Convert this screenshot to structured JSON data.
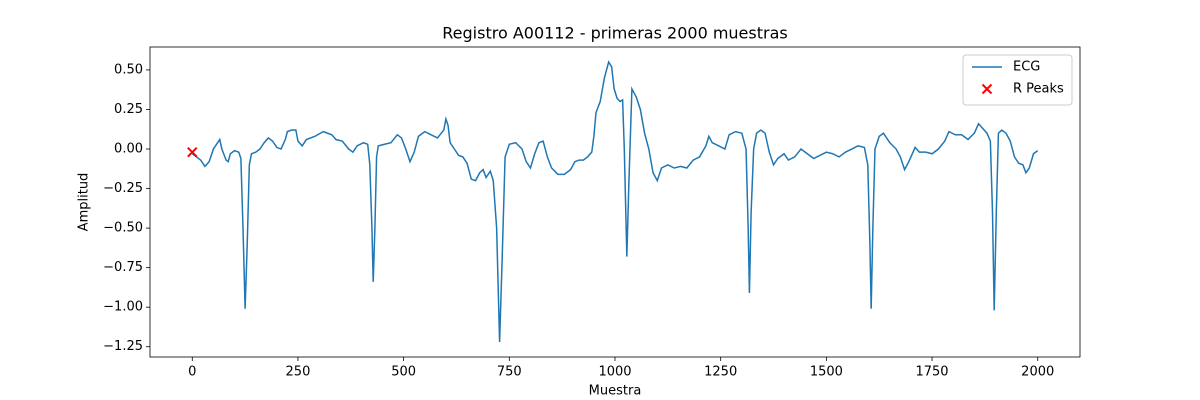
{
  "chart_data": {
    "type": "line",
    "title": "Registro A00112 - primeras 2000 muestras",
    "xlabel": "Muestra",
    "ylabel": "Amplitud",
    "xlim": [
      -100,
      2100
    ],
    "ylim": [
      -1.315,
      0.645
    ],
    "xticks": [
      0,
      250,
      500,
      750,
      1000,
      1250,
      1500,
      1750,
      2000
    ],
    "yticks": [
      {
        "value": -1.25,
        "label": "−1.25"
      },
      {
        "value": -1,
        "label": "−1.00"
      },
      {
        "value": -0.75,
        "label": "−0.75"
      },
      {
        "value": -0.5,
        "label": "−0.50"
      },
      {
        "value": -0.25,
        "label": "−0.25"
      },
      {
        "value": 0,
        "label": "0.00"
      },
      0.25,
      {
        "value": 0.5,
        "label": "0.50"
      }
    ],
    "legend": "upper right",
    "series": [
      {
        "name": "ECG",
        "type": "line",
        "color": "#1f77b4",
        "x": [
          0,
          10,
          20,
          30,
          40,
          50,
          60,
          65,
          70,
          80,
          85,
          90,
          100,
          110,
          115,
          120,
          125,
          130,
          135,
          140,
          150,
          160,
          170,
          180,
          190,
          200,
          210,
          220,
          225,
          235,
          245,
          250,
          260,
          270,
          290,
          310,
          330,
          340,
          355,
          370,
          380,
          390,
          405,
          415,
          420,
          425,
          428,
          432,
          436,
          440,
          455,
          470,
          485,
          495,
          505,
          515,
          525,
          535,
          550,
          565,
          580,
          595,
          600,
          605,
          610,
          620,
          630,
          640,
          650,
          660,
          670,
          680,
          688,
          695,
          705,
          712,
          720,
          727,
          733,
          740,
          750,
          765,
          780,
          790,
          800,
          810,
          820,
          830,
          840,
          850,
          865,
          880,
          895,
          905,
          915,
          925,
          935,
          945,
          950,
          955,
          965,
          975,
          985,
          992,
          998,
          1005,
          1012,
          1018,
          1022,
          1028,
          1033,
          1040,
          1050,
          1060,
          1070,
          1080,
          1090,
          1100,
          1110,
          1125,
          1140,
          1155,
          1170,
          1185,
          1200,
          1215,
          1222,
          1230,
          1245,
          1260,
          1270,
          1285,
          1300,
          1310,
          1315,
          1318,
          1322,
          1328,
          1335,
          1345,
          1355,
          1365,
          1375,
          1385,
          1400,
          1410,
          1425,
          1440,
          1455,
          1470,
          1485,
          1500,
          1515,
          1530,
          1545,
          1560,
          1575,
          1590,
          1598,
          1603,
          1606,
          1610,
          1615,
          1625,
          1635,
          1650,
          1665,
          1675,
          1685,
          1695,
          1710,
          1720,
          1735,
          1750,
          1765,
          1780,
          1790,
          1805,
          1820,
          1835,
          1850,
          1860,
          1870,
          1880,
          1888,
          1893,
          1897,
          1902,
          1907,
          1915,
          1925,
          1935,
          1945,
          1955,
          1965,
          1972,
          1980,
          1990,
          2000
        ],
        "values": [
          -0.03,
          -0.05,
          -0.07,
          -0.11,
          -0.08,
          0.0,
          0.04,
          0.06,
          0.0,
          -0.07,
          -0.08,
          -0.03,
          -0.01,
          -0.02,
          -0.06,
          -0.5,
          -1.01,
          -0.6,
          -0.1,
          -0.03,
          -0.02,
          0.0,
          0.04,
          0.07,
          0.05,
          0.01,
          0.0,
          0.06,
          0.11,
          0.12,
          0.12,
          0.05,
          0.02,
          0.06,
          0.08,
          0.11,
          0.09,
          0.06,
          0.05,
          0.0,
          -0.02,
          0.02,
          0.04,
          0.03,
          -0.1,
          -0.5,
          -0.84,
          -0.5,
          -0.05,
          0.02,
          0.03,
          0.04,
          0.09,
          0.07,
          0.0,
          -0.08,
          -0.02,
          0.08,
          0.11,
          0.09,
          0.07,
          0.12,
          0.19,
          0.15,
          0.04,
          0.0,
          -0.04,
          -0.05,
          -0.09,
          -0.19,
          -0.2,
          -0.15,
          -0.13,
          -0.18,
          -0.14,
          -0.2,
          -0.5,
          -1.22,
          -0.7,
          -0.05,
          0.03,
          0.04,
          0.0,
          -0.08,
          -0.12,
          -0.03,
          0.04,
          0.05,
          -0.05,
          -0.12,
          -0.16,
          -0.16,
          -0.13,
          -0.08,
          -0.07,
          -0.07,
          -0.05,
          -0.02,
          0.08,
          0.23,
          0.3,
          0.45,
          0.55,
          0.52,
          0.38,
          0.32,
          0.3,
          0.31,
          0.0,
          -0.68,
          -0.2,
          0.38,
          0.33,
          0.25,
          0.1,
          0.0,
          -0.15,
          -0.2,
          -0.12,
          -0.1,
          -0.12,
          -0.11,
          -0.12,
          -0.07,
          -0.05,
          0.02,
          0.08,
          0.04,
          0.02,
          0.0,
          0.09,
          0.11,
          0.1,
          0.0,
          -0.5,
          -0.91,
          -0.4,
          0.0,
          0.1,
          0.12,
          0.1,
          -0.02,
          -0.1,
          -0.06,
          -0.03,
          -0.07,
          -0.05,
          0.0,
          -0.03,
          -0.06,
          -0.04,
          -0.02,
          -0.03,
          -0.05,
          -0.02,
          0.0,
          0.02,
          0.01,
          -0.1,
          -0.6,
          -1.01,
          -0.5,
          0.0,
          0.08,
          0.1,
          0.04,
          0.0,
          -0.05,
          -0.13,
          -0.08,
          0.01,
          -0.02,
          -0.02,
          -0.03,
          0.0,
          0.05,
          0.11,
          0.09,
          0.09,
          0.06,
          0.1,
          0.16,
          0.13,
          0.1,
          0.05,
          -0.4,
          -1.02,
          -0.4,
          0.1,
          0.12,
          0.1,
          0.05,
          -0.05,
          -0.09,
          -0.1,
          -0.15,
          -0.12,
          -0.03,
          -0.01
        ]
      },
      {
        "name": "R Peaks",
        "type": "scatter",
        "color": "#ff0000",
        "x": [
          0
        ],
        "values": [
          -0.02
        ]
      }
    ]
  }
}
